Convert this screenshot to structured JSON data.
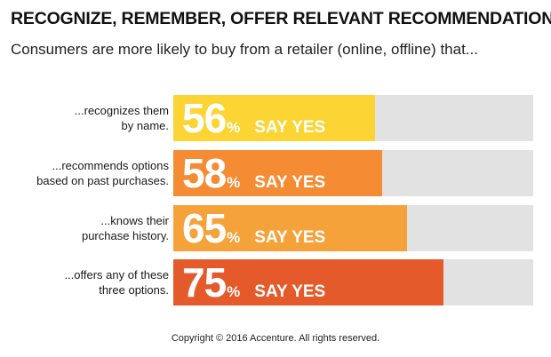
{
  "header": {
    "title": "RECOGNIZE, REMEMBER, OFFER RELEVANT RECOMMENDATIONS:",
    "subtitle": "Consumers are more likely to buy from a retailer (online, offline) that..."
  },
  "chart_data": {
    "type": "bar",
    "orientation": "horizontal",
    "categories": [
      [
        "...recognizes them",
        "by name."
      ],
      [
        "...recommends options",
        "based on past purchases."
      ],
      [
        "...knows their",
        "purchase history."
      ],
      [
        "...offers any of these",
        "three options."
      ]
    ],
    "values": [
      56,
      58,
      65,
      75
    ],
    "value_suffix": "%",
    "value_label_text": "SAY YES",
    "ylim": [
      0,
      100
    ],
    "colors": [
      "#fcd535",
      "#f58b33",
      "#f6a23b",
      "#e55a2b"
    ],
    "track_color": "#e2e2e2",
    "grid": false,
    "legend": "none"
  },
  "footer": {
    "copyright": "Copyright © 2016 Accenture. All rights reserved."
  }
}
